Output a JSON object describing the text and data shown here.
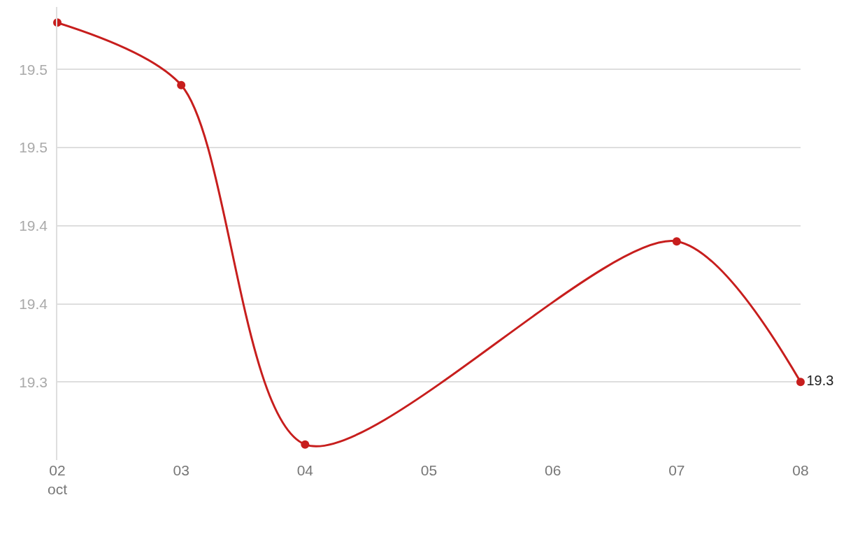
{
  "chart_data": {
    "type": "line",
    "x": [
      "--10-02",
      "--10-03",
      "--10-04",
      "--10-07",
      "--10-08"
    ],
    "series": [
      {
        "color": "#c71e1d",
        "values": [
          19.53,
          19.49,
          19.26,
          19.39,
          19.3
        ],
        "value_labels": [
          null,
          null,
          null,
          null,
          "19.3"
        ]
      }
    ],
    "xlim": [
      "--10-02",
      "--10-08"
    ],
    "xticks": [
      {
        "value": "--10-02",
        "label": "02\noct"
      },
      {
        "value": "--10-03",
        "label": "03"
      },
      {
        "value": "--10-04",
        "label": "04"
      },
      {
        "value": "--10-05",
        "label": "05"
      },
      {
        "value": "--10-06",
        "label": "06"
      },
      {
        "value": "--10-07",
        "label": "07"
      },
      {
        "value": "--10-08",
        "label": "08"
      }
    ],
    "ylim": [
      19.25,
      19.54
    ],
    "yticks": [
      {
        "value": 19.3,
        "label": "19.3"
      },
      {
        "value": 19.35,
        "label": "19.4"
      },
      {
        "value": 19.4,
        "label": "19.4"
      },
      {
        "value": 19.45,
        "label": "19.5"
      },
      {
        "value": 19.5,
        "label": "19.5"
      }
    ],
    "grid": "y",
    "marker": "circle",
    "line_style": "solid"
  }
}
